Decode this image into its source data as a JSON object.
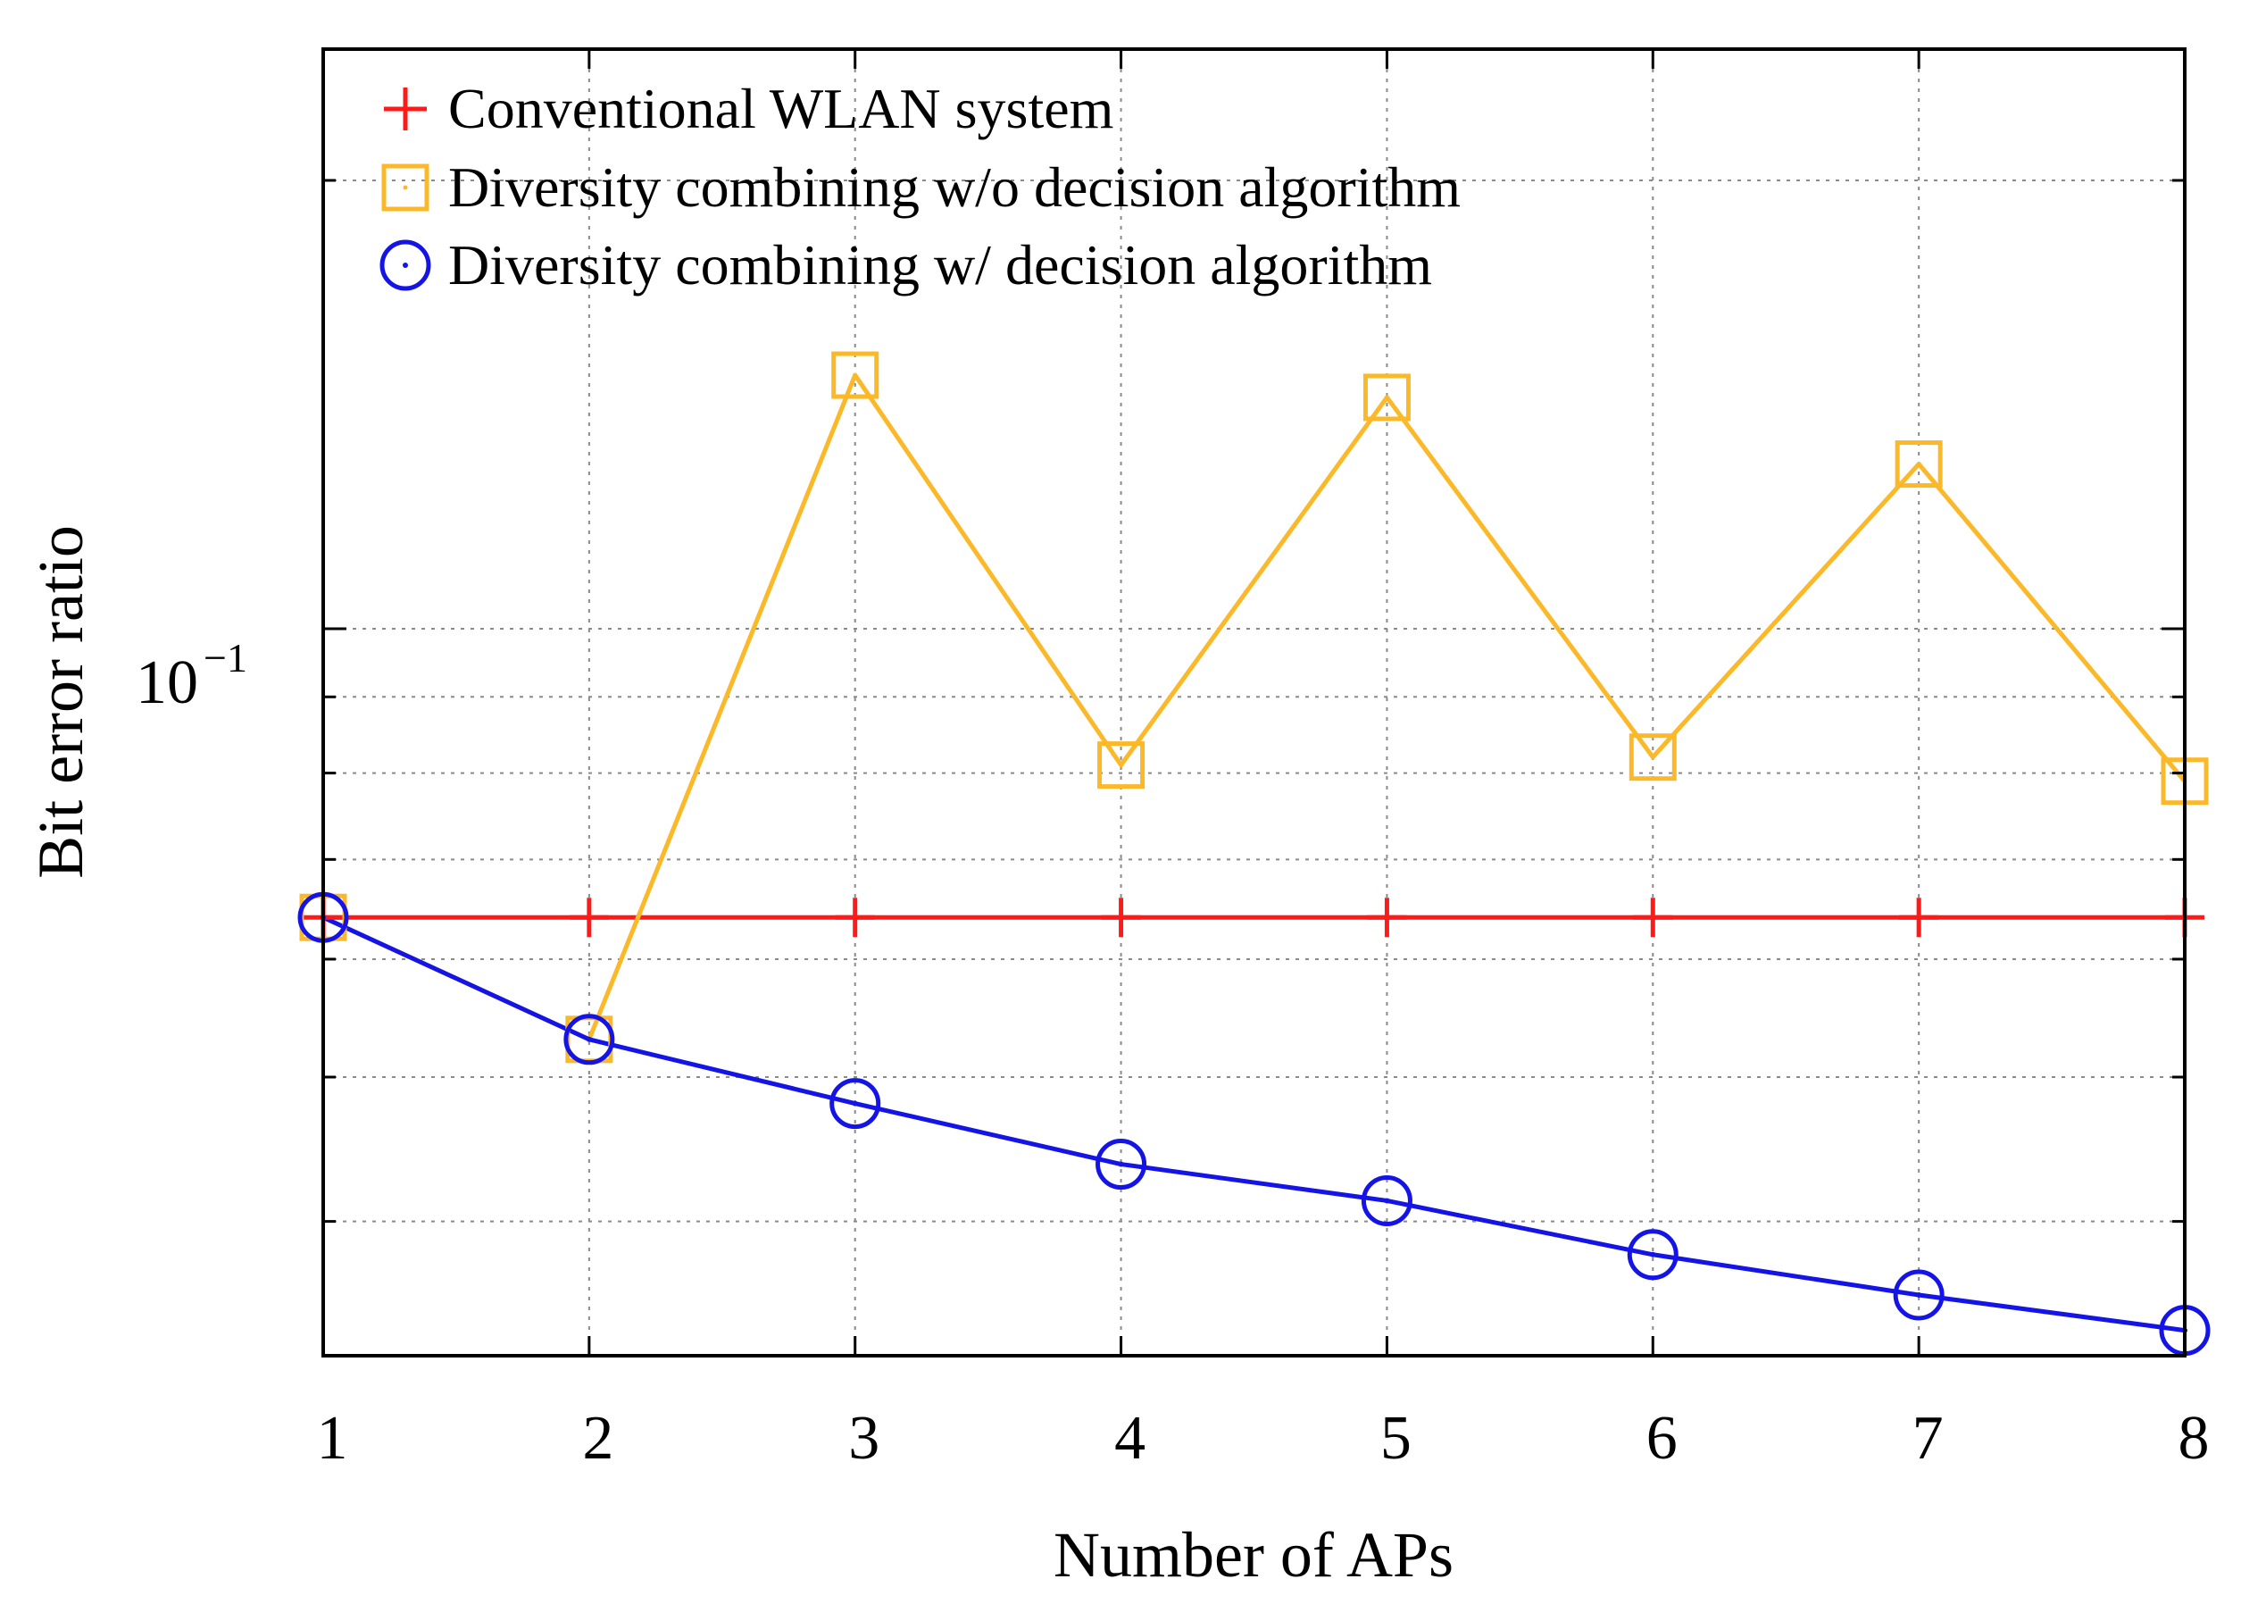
{
  "chart_data": {
    "type": "line",
    "title": "",
    "xlabel": "Number of APs",
    "ylabel": "Bit error ratio",
    "x": [
      1,
      2,
      3,
      4,
      5,
      6,
      7,
      8
    ],
    "xlim": [
      1,
      8
    ],
    "ylim": [
      0.0325,
      0.245
    ],
    "y_scale": "log",
    "grid": true,
    "x_tick_labels": [
      "1",
      "2",
      "3",
      "4",
      "5",
      "6",
      "7",
      "8"
    ],
    "y_tick_label": {
      "base": "10",
      "exponent": "−1",
      "value": 0.1
    },
    "legend_position": "top-left",
    "series": [
      {
        "name": "Conventional WLAN system",
        "color": "#ff1a1a",
        "marker": "plus",
        "values": [
          0.064,
          0.064,
          0.064,
          0.064,
          0.064,
          0.064,
          0.064,
          0.064
        ]
      },
      {
        "name": "Diversity combining w/o decision algorithm",
        "color": "#fbb829",
        "marker": "square",
        "values": [
          0.064,
          0.053,
          0.148,
          0.081,
          0.143,
          0.082,
          0.129,
          0.079
        ]
      },
      {
        "name": "Diversity combining w/ decision algorithm",
        "color": "#1414e6",
        "marker": "circle",
        "values": [
          0.064,
          0.053,
          0.048,
          0.0437,
          0.0413,
          0.038,
          0.0357,
          0.0338
        ]
      }
    ]
  }
}
